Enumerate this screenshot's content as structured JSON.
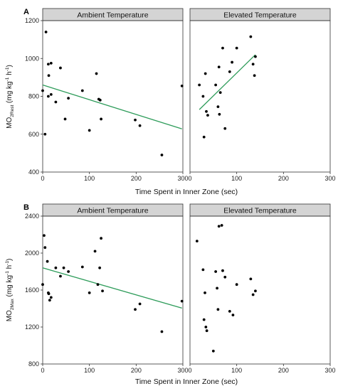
{
  "chart_data": [
    {
      "type": "scatter",
      "panel_label": "A",
      "ylabel": {
        "base": "MO",
        "sub": "2Rest",
        "unit": " (mg kg",
        "unit_sup": "-1",
        "unit_mid": " h",
        "unit_sup2": "-1",
        "unit_end": ")"
      },
      "xlabel": "Time Spent in Inner Zone (sec)",
      "xlim": [
        0,
        300
      ],
      "ylim": [
        400,
        1200
      ],
      "xticks": [
        0,
        100,
        200,
        300
      ],
      "yticks": [
        400,
        600,
        800,
        1000,
        1200
      ],
      "grid": false,
      "facets": [
        {
          "strip": "Ambient Temperature",
          "points": [
            [
              0,
              830
            ],
            [
              5,
              600
            ],
            [
              7,
              1140
            ],
            [
              12,
              800
            ],
            [
              12,
              970
            ],
            [
              13,
              910
            ],
            [
              18,
              810
            ],
            [
              18,
              975
            ],
            [
              28,
              770
            ],
            [
              38,
              950
            ],
            [
              48,
              680
            ],
            [
              55,
              790
            ],
            [
              85,
              830
            ],
            [
              100,
              620
            ],
            [
              115,
              920
            ],
            [
              120,
              785
            ],
            [
              123,
              780
            ],
            [
              125,
              680
            ],
            [
              198,
              675
            ],
            [
              208,
              645
            ],
            [
              255,
              490
            ],
            [
              298,
              855
            ]
          ],
          "trend": [
            [
              0,
              860
            ],
            [
              298,
              628
            ]
          ],
          "trend_color": "#2e9c5a"
        },
        {
          "strip": "Elevated Temperature",
          "points": [
            [
              20,
              860
            ],
            [
              28,
              800
            ],
            [
              30,
              585
            ],
            [
              33,
              920
            ],
            [
              35,
              720
            ],
            [
              38,
              700
            ],
            [
              55,
              860
            ],
            [
              60,
              745
            ],
            [
              62,
              955
            ],
            [
              63,
              705
            ],
            [
              65,
              820
            ],
            [
              70,
              1055
            ],
            [
              75,
              630
            ],
            [
              85,
              930
            ],
            [
              90,
              980
            ],
            [
              100,
              1055
            ],
            [
              130,
              1115
            ],
            [
              135,
              970
            ],
            [
              138,
              910
            ],
            [
              140,
              1010
            ]
          ],
          "trend": [
            [
              20,
              730
            ],
            [
              140,
              1020
            ]
          ],
          "trend_color": "#2e9c5a"
        }
      ]
    },
    {
      "type": "scatter",
      "panel_label": "B",
      "ylabel": {
        "base": "MO",
        "sub": "2Max",
        "unit": " (mg kg",
        "unit_sup": "-1",
        "unit_mid": " h",
        "unit_sup2": "-1",
        "unit_end": ")"
      },
      "xlabel": "Time Spent in Inner Zone (sec)",
      "xlim": [
        0,
        300
      ],
      "ylim": [
        800,
        2400
      ],
      "xticks": [
        0,
        100,
        200,
        300
      ],
      "yticks": [
        800,
        1200,
        1600,
        2000,
        2400
      ],
      "grid": false,
      "facets": [
        {
          "strip": "Ambient Temperature",
          "points": [
            [
              0,
              1660
            ],
            [
              3,
              2190
            ],
            [
              5,
              2060
            ],
            [
              10,
              1910
            ],
            [
              12,
              1570
            ],
            [
              13,
              1560
            ],
            [
              15,
              1490
            ],
            [
              18,
              1520
            ],
            [
              28,
              1840
            ],
            [
              38,
              1750
            ],
            [
              45,
              1840
            ],
            [
              55,
              1800
            ],
            [
              85,
              1850
            ],
            [
              100,
              1570
            ],
            [
              112,
              2020
            ],
            [
              118,
              1660
            ],
            [
              122,
              1840
            ],
            [
              125,
              2160
            ],
            [
              128,
              1590
            ],
            [
              198,
              1390
            ],
            [
              208,
              1450
            ],
            [
              255,
              1150
            ],
            [
              298,
              1480
            ]
          ],
          "trend": [
            [
              0,
              1840
            ],
            [
              298,
              1405
            ]
          ],
          "trend_color": "#2e9c5a"
        },
        {
          "strip": "Elevated Temperature",
          "points": [
            [
              15,
              2130
            ],
            [
              28,
              1820
            ],
            [
              30,
              1280
            ],
            [
              32,
              1570
            ],
            [
              34,
              1200
            ],
            [
              36,
              1160
            ],
            [
              50,
              940
            ],
            [
              55,
              1800
            ],
            [
              58,
              1620
            ],
            [
              60,
              1390
            ],
            [
              62,
              2290
            ],
            [
              68,
              2300
            ],
            [
              70,
              1810
            ],
            [
              75,
              1740
            ],
            [
              85,
              1370
            ],
            [
              92,
              1330
            ],
            [
              100,
              1660
            ],
            [
              130,
              1720
            ],
            [
              135,
              1550
            ],
            [
              140,
              1590
            ]
          ],
          "trend": null
        }
      ]
    }
  ]
}
